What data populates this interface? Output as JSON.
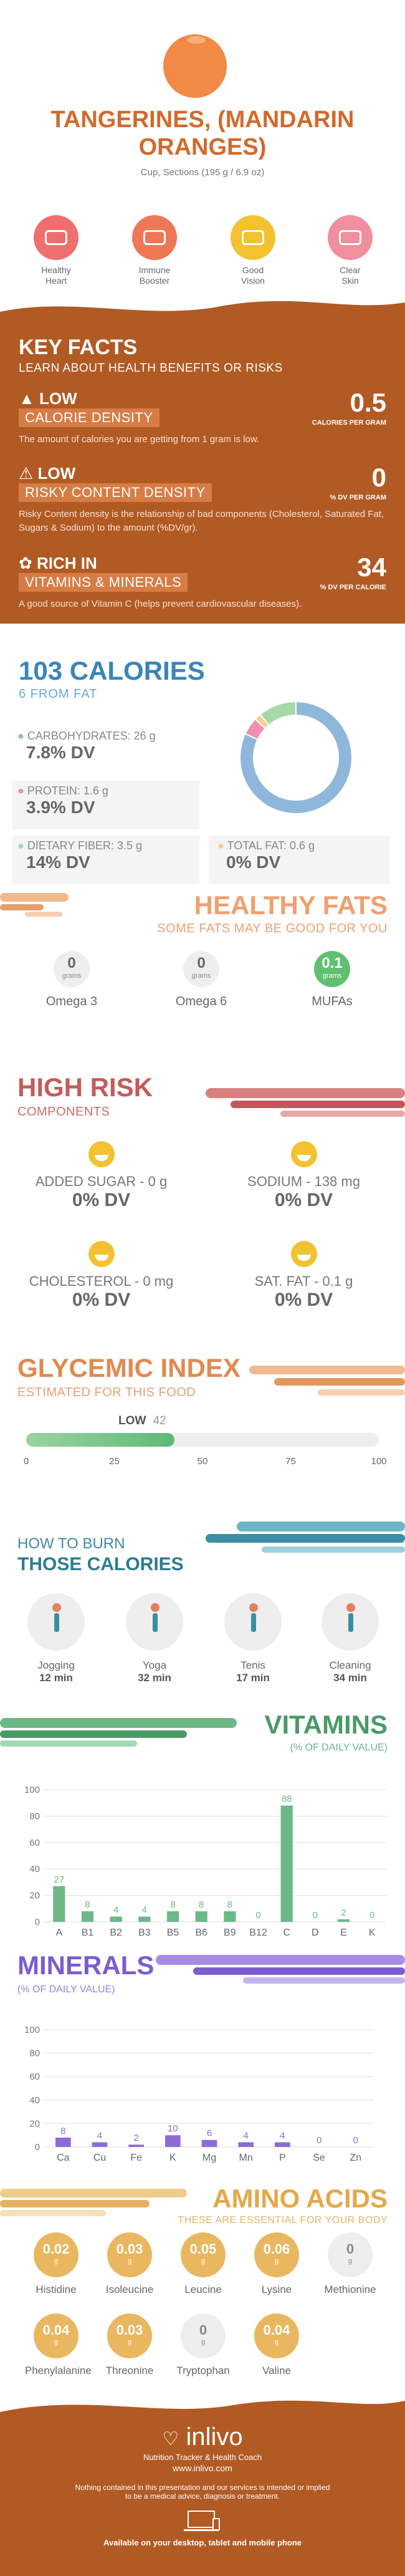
{
  "header": {
    "title_line1": "TANGERINES, (MANDARIN",
    "title_line2": "ORANGES)",
    "serving": "Cup, Sections (195 g / 6.9 oz)"
  },
  "benefits": [
    {
      "label1": "Healthy",
      "label2": "Heart",
      "icon": "heart-icon",
      "color": "#ef6f6f"
    },
    {
      "label1": "Immune",
      "label2": "Booster",
      "icon": "shield-icon",
      "color": "#ee7755"
    },
    {
      "label1": "Good",
      "label2": "Vision",
      "icon": "eye-icon",
      "color": "#f2c230"
    },
    {
      "label1": "Clear",
      "label2": "Skin",
      "icon": "face-icon",
      "color": "#f08f9e"
    }
  ],
  "key_facts": {
    "title": "KEY FACTS",
    "subtitle": "LEARN ABOUT HEALTH BENEFITS OR RISKS",
    "items": [
      {
        "level": "LOW",
        "name": "CALORIE DENSITY",
        "value": "0.5",
        "unit": "CALORIES PER GRAM",
        "desc": "The amount of calories you are getting from 1 gram is low.",
        "icon": "flame-icon"
      },
      {
        "level": "LOW",
        "name": "RISKY CONTENT DENSITY",
        "value": "0",
        "unit": "% DV PER GRAM",
        "desc": "Risky Content density is the relationship of bad components (Cholesterol, Saturated Fat, Sugars & Sodium) to the amount (%DV/gr).",
        "icon": "warning-icon"
      },
      {
        "level": "RICH  IN",
        "name": "VITAMINS & MINERALS",
        "value": "34",
        "unit": "% DV PER CALORIE",
        "desc": "A good source of Vitamin C (helps prevent cardiovascular diseases).",
        "icon": "leaf-icon"
      }
    ]
  },
  "calories": {
    "title": "103 CALORIES",
    "subtitle": "6 FROM FAT",
    "carbs_label": "CARBOHYDRATES: 26 g",
    "carbs_dv": "7.8% DV",
    "protein_label": "PROTEIN: 1.6 g",
    "protein_dv": "3.9% DV",
    "fiber_label": "DIETARY FIBER: 3.5 g",
    "fiber_dv": "14% DV",
    "fat_label": "TOTAL FAT: 0.6 g",
    "fat_dv": "0% DV",
    "colors": {
      "carbs": "#8fb7dc",
      "protein": "#f08fb0",
      "fiber": "#a6d8a8",
      "fat": "#f2d08a"
    }
  },
  "healthy_fats": {
    "title": "HEALTHY FATS",
    "subtitle": "SOME FATS MAY BE GOOD FOR YOU",
    "items": [
      {
        "value": "0",
        "unit": "grams",
        "label": "Omega 3"
      },
      {
        "value": "0",
        "unit": "grams",
        "label": "Omega 6"
      },
      {
        "value": "0.1",
        "unit": "grams",
        "label": "MUFAs"
      }
    ]
  },
  "high_risk": {
    "title": "HIGH RISK",
    "subtitle": "COMPONENTS",
    "items": [
      {
        "label": "ADDED SUGAR - 0 g",
        "dv": "0% DV"
      },
      {
        "label": "SODIUM - 138 mg",
        "dv": "0% DV"
      },
      {
        "label": "CHOLESTEROL - 0 mg",
        "dv": "0% DV"
      },
      {
        "label": "SAT. FAT - 0.1 g",
        "dv": "0% DV"
      }
    ]
  },
  "glycemic": {
    "title": "GLYCEMIC INDEX",
    "subtitle": "ESTIMATED FOR THIS FOOD",
    "level": "LOW",
    "value": 42,
    "ticks": [
      "0",
      "25",
      "50",
      "75",
      "100"
    ]
  },
  "burn": {
    "title1": "HOW TO BURN",
    "title2": "THOSE CALORIES",
    "items": [
      {
        "label": "Jogging",
        "minutes": "12 min",
        "icon": "jogging-icon"
      },
      {
        "label": "Yoga",
        "minutes": "32 min",
        "icon": "yoga-icon"
      },
      {
        "label": "Tenis",
        "minutes": "17 min",
        "icon": "tennis-icon"
      },
      {
        "label": "Cleaning",
        "minutes": "34 min",
        "icon": "cleaning-icon"
      }
    ]
  },
  "vitamins": {
    "title": "VITAMINS",
    "subtitle": "(% OF DAILY VALUE)",
    "y_ticks": [
      "100",
      "80",
      "60",
      "40",
      "20",
      "0"
    ]
  },
  "minerals": {
    "title": "MINERALS",
    "subtitle": "(% OF DAILY VALUE)",
    "y_ticks": [
      "100",
      "80",
      "60",
      "40",
      "20",
      "0"
    ]
  },
  "chart_data": [
    {
      "type": "bar",
      "title": "VITAMINS",
      "categories": [
        "A",
        "B1",
        "B2",
        "B3",
        "B5",
        "B6",
        "B9",
        "B12",
        "C",
        "D",
        "E",
        "K"
      ],
      "values": [
        27,
        8,
        4,
        4,
        8,
        8,
        8,
        0,
        88,
        0,
        2,
        0
      ],
      "ylim": [
        0,
        100
      ],
      "color": "#6cb886"
    },
    {
      "type": "bar",
      "title": "MINERALS",
      "categories": [
        "Ca",
        "Cu",
        "Fe",
        "K",
        "Mg",
        "Mn",
        "P",
        "Se",
        "Zn"
      ],
      "values": [
        8,
        4,
        2,
        10,
        6,
        4,
        4,
        0,
        0
      ],
      "ylim": [
        0,
        100
      ],
      "color": "#8c6bd6"
    },
    {
      "type": "pie",
      "categories": [
        "Carbohydrates",
        "Protein",
        "Total Fat",
        "Dietary Fiber"
      ],
      "values": [
        26,
        1.6,
        0.6,
        3.5
      ]
    }
  ],
  "amino": {
    "title": "AMINO ACIDS",
    "subtitle": "THESE ARE ESSENTIAL FOR YOUR BODY",
    "items": [
      {
        "value": "0.02",
        "unit": "g",
        "label": "Histidine"
      },
      {
        "value": "0.03",
        "unit": "g",
        "label": "Isoleucine"
      },
      {
        "value": "0.05",
        "unit": "g",
        "label": "Leucine"
      },
      {
        "value": "0.06",
        "unit": "g",
        "label": "Lysine"
      },
      {
        "value": "0",
        "unit": "g",
        "label": "Methionine"
      },
      {
        "value": "0.04",
        "unit": "g",
        "label": "Phenylalanine"
      },
      {
        "value": "0.03",
        "unit": "g",
        "label": "Threonine"
      },
      {
        "value": "0",
        "unit": "g",
        "label": "Tryptophan"
      },
      {
        "value": "0.04",
        "unit": "g",
        "label": "Valine"
      }
    ]
  },
  "footer": {
    "brand": "inlivo",
    "tagline": "Nutrition Tracker & Health Coach",
    "url": "www.inlivo.com",
    "disclaimer1": "Nothing contained in this presentation and our services is intended or implied",
    "disclaimer2": "to be a medical advice, diagnosis or treatment.",
    "available": "Available on your desktop, tablet and mobile phone"
  }
}
